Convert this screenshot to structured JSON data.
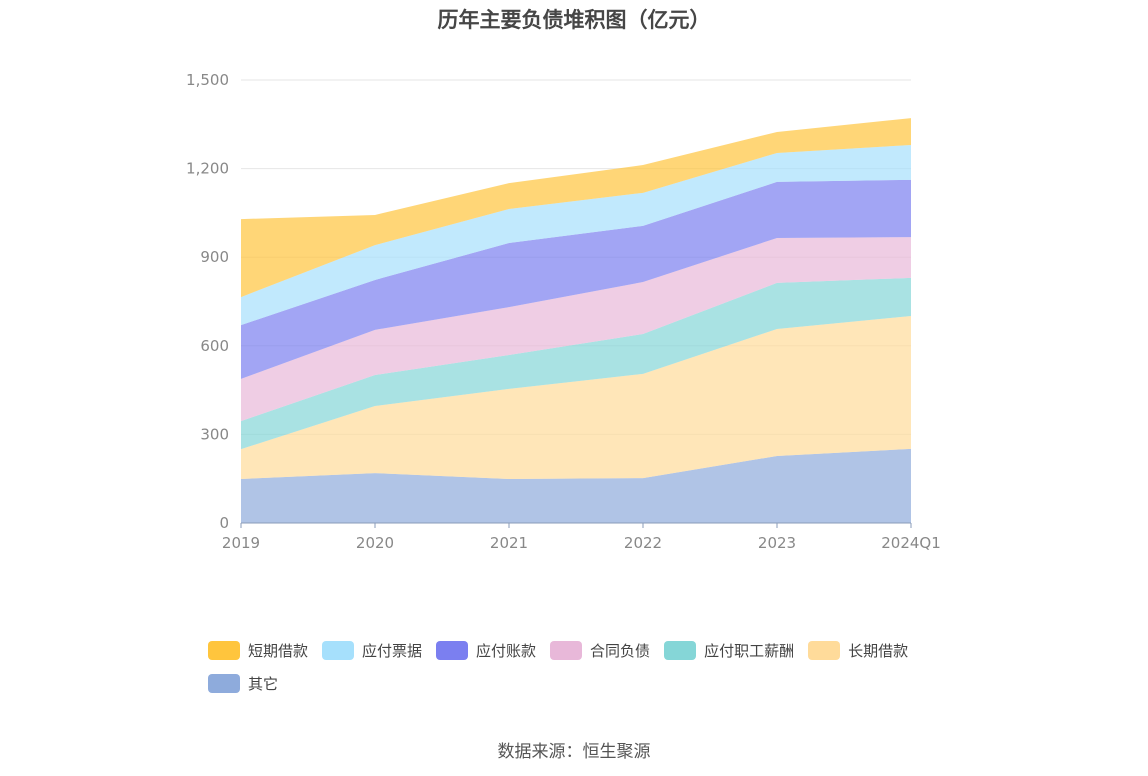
{
  "source": "数据来源：恒生聚源",
  "chart_data": {
    "type": "area",
    "stacked": true,
    "title": "历年主要负债堆积图（亿元）",
    "categories": [
      "2019",
      "2020",
      "2021",
      "2022",
      "2023",
      "2024Q1"
    ],
    "ylim": [
      0,
      1500
    ],
    "yticks": [
      "0",
      "300",
      "600",
      "900",
      "1,200",
      "1,500"
    ],
    "ytick_values": [
      0,
      300,
      600,
      900,
      1200,
      1500
    ],
    "grid": true,
    "legend_position": "bottom",
    "series": [
      {
        "name": "短期借款",
        "color": "#ffc53d",
        "values": [
          264,
          102,
          88,
          94,
          71,
          91
        ]
      },
      {
        "name": "应付票据",
        "color": "#a6e0fc",
        "values": [
          95,
          118,
          115,
          112,
          98,
          118
        ]
      },
      {
        "name": "应付账款",
        "color": "#7b7ff0",
        "values": [
          182,
          169,
          217,
          190,
          190,
          194
        ]
      },
      {
        "name": "合同负债",
        "color": "#e8b8d9",
        "values": [
          143,
          153,
          162,
          176,
          152,
          138
        ]
      },
      {
        "name": "应付职工薪酬",
        "color": "#85d6d7",
        "values": [
          95,
          105,
          115,
          135,
          156,
          129
        ]
      },
      {
        "name": "长期借款",
        "color": "#ffdb9a",
        "values": [
          101,
          227,
          305,
          353,
          430,
          450
        ]
      },
      {
        "name": "其它",
        "color": "#8eabdc",
        "values": [
          149,
          169,
          149,
          152,
          227,
          251
        ]
      }
    ]
  }
}
